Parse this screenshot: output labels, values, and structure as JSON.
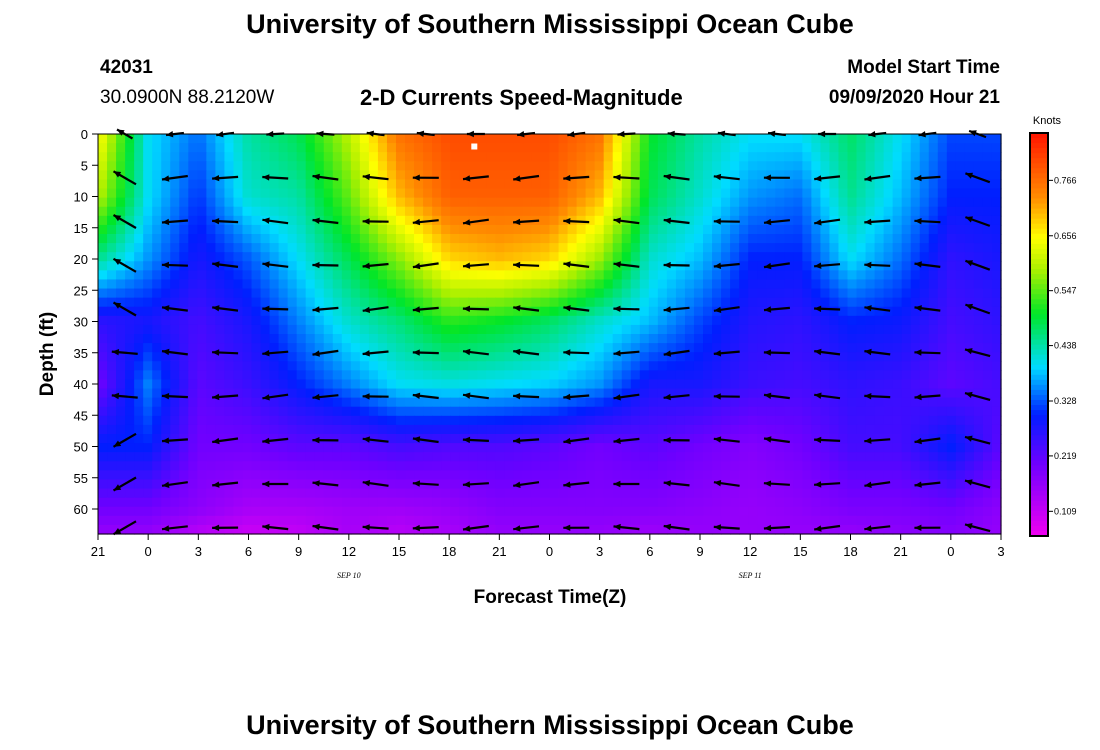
{
  "page": {
    "title_top": "University of Southern Mississippi Ocean Cube",
    "title_bottom": "University of Southern Mississippi Ocean Cube",
    "station_id": "42031",
    "station_coords": "30.0900N 88.2120W",
    "plot_title": "2-D Currents Speed-Magnitude",
    "model_label": "Model Start Time",
    "model_time": "09/09/2020 Hour 21"
  },
  "chart_data": {
    "type": "heatmap",
    "title": "2-D Currents Speed-Magnitude",
    "xlabel": "Forecast Time(Z)",
    "ylabel": "Depth (ft)",
    "x_ticks": [
      "21",
      "0",
      "3",
      "6",
      "9",
      "12",
      "15",
      "18",
      "21",
      "0",
      "3",
      "6",
      "9",
      "12",
      "15",
      "18",
      "21",
      "0",
      "3"
    ],
    "x_tick_hours": [
      0,
      3,
      6,
      9,
      12,
      15,
      18,
      21,
      24,
      27,
      30,
      33,
      36,
      39,
      42,
      45,
      48,
      51,
      54
    ],
    "x_range_hours": [
      0,
      54
    ],
    "date_labels": [
      {
        "text": "SEP 10",
        "hour": 15
      },
      {
        "text": "SEP 11",
        "hour": 39
      }
    ],
    "y_ticks": [
      0,
      5,
      10,
      15,
      20,
      25,
      30,
      35,
      40,
      45,
      50,
      55,
      60
    ],
    "ylim": [
      0,
      64
    ],
    "colorbar": {
      "unit": "Knots",
      "ticks": [
        0.109,
        0.219,
        0.328,
        0.438,
        0.547,
        0.656,
        0.766
      ],
      "min": 0.06,
      "max": 0.86
    },
    "speed_knots": {
      "hours": [
        0,
        3,
        6,
        9,
        12,
        15,
        18,
        21,
        24,
        27,
        30,
        33,
        36,
        39,
        42,
        45,
        48,
        51,
        54
      ],
      "depths_ft": [
        0,
        10,
        20,
        30,
        40,
        50,
        60,
        64
      ],
      "values": [
        [
          0.66,
          0.4,
          0.34,
          0.44,
          0.48,
          0.6,
          0.76,
          0.8,
          0.8,
          0.8,
          0.76,
          0.5,
          0.44,
          0.4,
          0.4,
          0.47,
          0.4,
          0.32,
          0.32
        ],
        [
          0.6,
          0.4,
          0.31,
          0.42,
          0.44,
          0.55,
          0.7,
          0.78,
          0.78,
          0.78,
          0.7,
          0.48,
          0.42,
          0.36,
          0.34,
          0.45,
          0.38,
          0.3,
          0.3
        ],
        [
          0.45,
          0.36,
          0.28,
          0.33,
          0.4,
          0.48,
          0.57,
          0.68,
          0.7,
          0.68,
          0.58,
          0.42,
          0.38,
          0.3,
          0.3,
          0.4,
          0.34,
          0.26,
          0.28
        ],
        [
          0.26,
          0.28,
          0.24,
          0.28,
          0.35,
          0.42,
          0.46,
          0.52,
          0.5,
          0.47,
          0.42,
          0.38,
          0.32,
          0.27,
          0.26,
          0.3,
          0.29,
          0.24,
          0.26
        ],
        [
          0.2,
          0.35,
          0.22,
          0.25,
          0.3,
          0.35,
          0.4,
          0.41,
          0.4,
          0.39,
          0.36,
          0.28,
          0.28,
          0.25,
          0.24,
          0.26,
          0.25,
          0.22,
          0.24
        ],
        [
          0.3,
          0.3,
          0.2,
          0.2,
          0.22,
          0.22,
          0.24,
          0.23,
          0.23,
          0.22,
          0.2,
          0.22,
          0.2,
          0.18,
          0.2,
          0.24,
          0.24,
          0.3,
          0.22
        ],
        [
          0.2,
          0.2,
          0.17,
          0.14,
          0.14,
          0.15,
          0.15,
          0.16,
          0.18,
          0.18,
          0.18,
          0.18,
          0.17,
          0.16,
          0.17,
          0.19,
          0.19,
          0.2,
          0.17
        ],
        [
          0.16,
          0.16,
          0.12,
          0.1,
          0.11,
          0.14,
          0.12,
          0.14,
          0.16,
          0.16,
          0.16,
          0.15,
          0.16,
          0.16,
          0.16,
          0.16,
          0.17,
          0.18,
          0.16
        ]
      ]
    },
    "marker": {
      "hour": 22.5,
      "depth_ft": 2
    }
  }
}
